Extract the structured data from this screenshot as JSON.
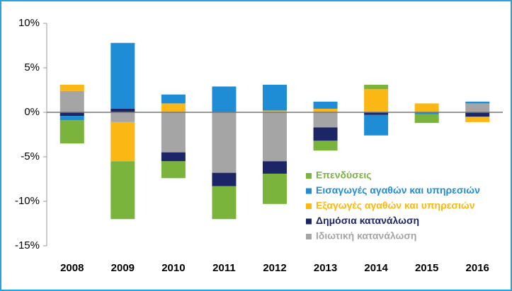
{
  "chart_data": {
    "type": "stacked_bar",
    "categories": [
      "2008",
      "2009",
      "2010",
      "2011",
      "2012",
      "2013",
      "2014",
      "2015",
      "2016"
    ],
    "series": [
      {
        "name": "Επενδύσεις",
        "color": "#7ab43c",
        "values": [
          -2.6,
          -6.5,
          -1.9,
          -3.7,
          -3.4,
          -1.1,
          0.5,
          -1.0,
          0
        ]
      },
      {
        "name": "Εισαγωγές αγαθών και υπηρεσιών",
        "color": "#1f8dd6",
        "values": [
          -0.5,
          7.4,
          1.0,
          2.9,
          2.9,
          0.8,
          -2.3,
          -0.2,
          0.2
        ]
      },
      {
        "name": "Εξαγωγές αγαθών και υπηρεσιών",
        "color": "#fbb714",
        "values": [
          0.7,
          -4.4,
          1.0,
          0,
          0.2,
          0.4,
          2.5,
          1.0,
          -0.6
        ]
      },
      {
        "name": "Δημόσια κατανάλωση",
        "color": "#1c2566",
        "values": [
          -0.4,
          0.4,
          -1.0,
          -1.5,
          -1.4,
          -1.5,
          -0.3,
          0,
          -0.5
        ]
      },
      {
        "name": "Ιδιωτική κατανάλωση",
        "color": "#a5a5a5",
        "values": [
          2.4,
          -1.1,
          -4.5,
          -6.8,
          -5.5,
          -1.7,
          0.1,
          0,
          1.0
        ]
      }
    ],
    "ylim": [
      -15,
      10
    ],
    "yticks": [
      {
        "value": -15,
        "label": "-15%"
      },
      {
        "value": -10,
        "label": "-10%"
      },
      {
        "value": -5,
        "label": "-5%"
      },
      {
        "value": 0,
        "label": "0%"
      },
      {
        "value": 5,
        "label": "5%"
      },
      {
        "value": 10,
        "label": "10%"
      }
    ]
  }
}
